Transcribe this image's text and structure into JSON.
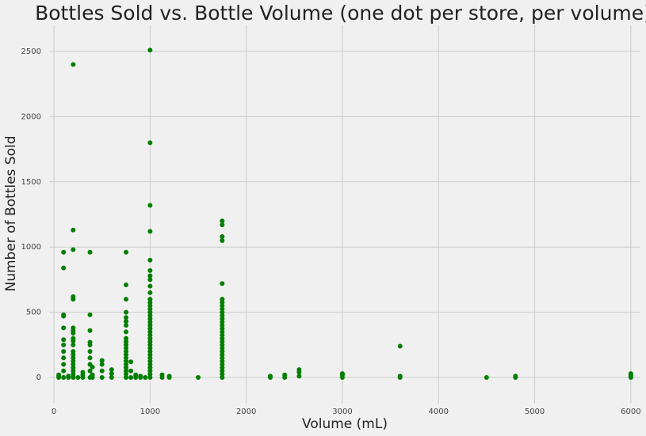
{
  "chart_data": {
    "type": "scatter",
    "title": "Bottles Sold vs. Bottle Volume (one dot per store, per volume)",
    "x_label": "Volume (mL)",
    "y_label": "Number of Bottles Sold",
    "color": "#007f00",
    "xlim": [
      -50,
      6100
    ],
    "ylim": [
      -200,
      2700
    ],
    "xticks": [
      0,
      1000,
      2000,
      3000,
      4000,
      5000,
      6000
    ],
    "yticks": [
      0,
      500,
      1000,
      1500,
      2000,
      2500
    ],
    "grid": true,
    "x": [
      50,
      50,
      50,
      100,
      100,
      100,
      100,
      100,
      100,
      100,
      100,
      100,
      100,
      100,
      100,
      150,
      150,
      200,
      200,
      200,
      200,
      200,
      200,
      200,
      200,
      200,
      200,
      200,
      200,
      200,
      200,
      200,
      200,
      200,
      200,
      200,
      200,
      250,
      300,
      300,
      300,
      375,
      375,
      375,
      375,
      375,
      375,
      375,
      375,
      375,
      375,
      400,
      400,
      400,
      500,
      500,
      500,
      500,
      600,
      600,
      600,
      750,
      750,
      750,
      750,
      750,
      750,
      750,
      750,
      750,
      750,
      750,
      750,
      750,
      750,
      750,
      750,
      750,
      750,
      750,
      750,
      750,
      800,
      800,
      800,
      850,
      850,
      900,
      900,
      950,
      1000,
      1000,
      1000,
      1000,
      1000,
      1000,
      1000,
      1000,
      1000,
      1000,
      1000,
      1000,
      1000,
      1000,
      1000,
      1000,
      1000,
      1000,
      1000,
      1000,
      1000,
      1000,
      1000,
      1000,
      1000,
      1000,
      1000,
      1000,
      1000,
      1000,
      1000,
      1000,
      1000,
      1000,
      1000,
      1125,
      1125,
      1200,
      1200,
      1500,
      1750,
      1750,
      1750,
      1750,
      1750,
      1750,
      1750,
      1750,
      1750,
      1750,
      1750,
      1750,
      1750,
      1750,
      1750,
      1750,
      1750,
      1750,
      1750,
      1750,
      1750,
      1750,
      1750,
      1750,
      1750,
      1750,
      1750,
      1750,
      1750,
      1750,
      2250,
      2250,
      2400,
      2400,
      2550,
      2550,
      2550,
      3000,
      3000,
      3000,
      3600,
      3600,
      3600,
      4500,
      4800,
      4800,
      6000,
      6000,
      6000,
      6000
    ],
    "y": [
      0,
      10,
      20,
      0,
      50,
      100,
      150,
      200,
      250,
      290,
      380,
      470,
      480,
      840,
      960,
      0,
      10,
      0,
      25,
      50,
      75,
      100,
      125,
      150,
      175,
      200,
      250,
      280,
      300,
      340,
      360,
      380,
      600,
      620,
      980,
      1130,
      2400,
      0,
      0,
      20,
      40,
      0,
      50,
      100,
      150,
      200,
      250,
      270,
      360,
      480,
      960,
      0,
      20,
      80,
      0,
      50,
      100,
      130,
      0,
      30,
      60,
      0,
      25,
      50,
      75,
      100,
      125,
      150,
      175,
      200,
      225,
      250,
      275,
      300,
      350,
      400,
      430,
      460,
      500,
      600,
      710,
      960,
      0,
      50,
      120,
      0,
      20,
      0,
      10,
      0,
      0,
      25,
      50,
      75,
      100,
      125,
      150,
      175,
      200,
      225,
      250,
      275,
      300,
      325,
      350,
      375,
      400,
      425,
      450,
      475,
      500,
      525,
      550,
      575,
      600,
      650,
      700,
      750,
      780,
      820,
      900,
      1120,
      1320,
      1800,
      2510,
      0,
      20,
      0,
      10,
      0,
      0,
      25,
      50,
      75,
      100,
      125,
      150,
      175,
      200,
      225,
      250,
      275,
      300,
      325,
      350,
      375,
      400,
      425,
      450,
      475,
      500,
      525,
      550,
      575,
      600,
      720,
      1050,
      1080,
      1170,
      1200,
      0,
      10,
      0,
      20,
      10,
      40,
      60,
      0,
      20,
      30,
      0,
      10,
      240,
      0,
      0,
      10,
      0,
      10,
      20,
      30
    ]
  }
}
